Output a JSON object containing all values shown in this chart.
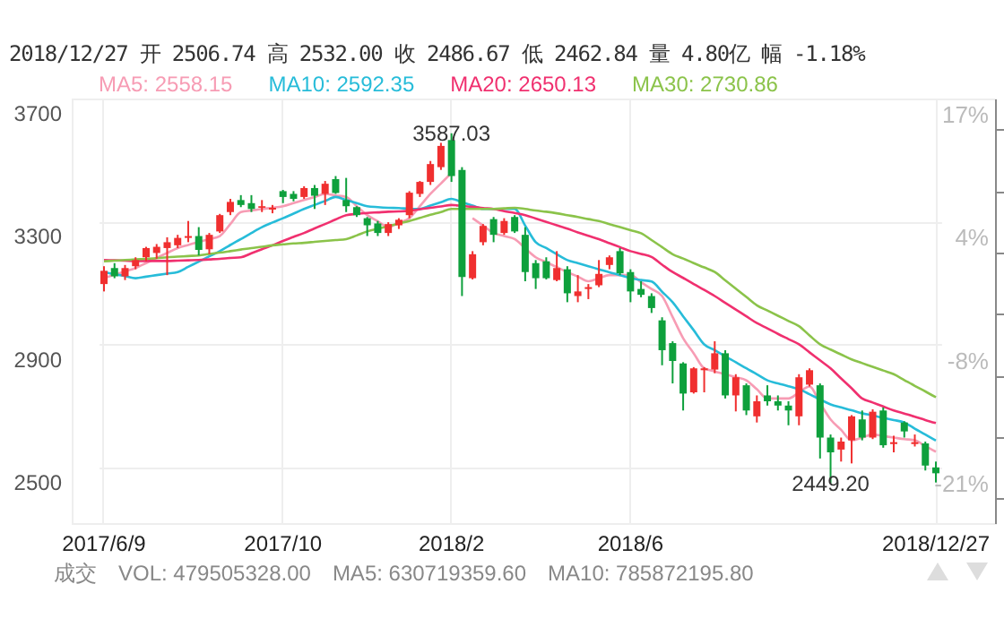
{
  "chart_data": {
    "type": "candlestick",
    "title": "2018/12/27 开 2506.74 高 2532.00 收 2486.67 低 2462.84 量 4.80亿 幅 -1.18%",
    "categories": [
      "2017/6/9",
      null,
      null,
      null,
      null,
      null,
      null,
      null,
      null,
      null,
      null,
      null,
      null,
      null,
      null,
      null,
      null,
      "2017/10",
      null,
      null,
      null,
      null,
      null,
      null,
      null,
      null,
      null,
      null,
      null,
      null,
      null,
      null,
      null,
      "2018/2",
      null,
      null,
      null,
      null,
      null,
      null,
      null,
      null,
      null,
      null,
      null,
      null,
      null,
      null,
      null,
      null,
      "2018/6",
      null,
      null,
      null,
      null,
      null,
      null,
      null,
      null,
      null,
      null,
      null,
      null,
      null,
      null,
      null,
      null,
      null,
      null,
      null,
      null,
      null,
      null,
      null,
      null,
      null,
      null,
      null,
      null,
      "2018/12/27"
    ],
    "ohlc": [
      [
        3097,
        3155,
        3073,
        3140
      ],
      [
        3149,
        3165,
        3116,
        3122
      ],
      [
        3122,
        3159,
        3110,
        3149
      ],
      [
        3155,
        3184,
        3145,
        3175
      ],
      [
        3184,
        3218,
        3171,
        3214
      ],
      [
        3198,
        3227,
        3179,
        3218
      ],
      [
        3214,
        3249,
        3126,
        3233
      ],
      [
        3223,
        3257,
        3214,
        3247
      ],
      [
        3247,
        3302,
        3233,
        3253
      ],
      [
        3253,
        3282,
        3190,
        3208
      ],
      [
        3210,
        3263,
        3194,
        3257
      ],
      [
        3268,
        3325,
        3263,
        3321
      ],
      [
        3331,
        3374,
        3321,
        3364
      ],
      [
        3370,
        3386,
        3347,
        3354
      ],
      [
        3360,
        3386,
        3331,
        3341
      ],
      [
        3345,
        3370,
        3331,
        3350
      ],
      [
        3339,
        3354,
        3327,
        3345
      ],
      [
        3399,
        3403,
        3360,
        3380
      ],
      [
        3390,
        3399,
        3366,
        3374
      ],
      [
        3380,
        3415,
        3374,
        3409
      ],
      [
        3409,
        3419,
        3341,
        3384
      ],
      [
        3390,
        3432,
        3354,
        3423
      ],
      [
        3438,
        3448,
        3390,
        3393
      ],
      [
        3370,
        3442,
        3331,
        3350
      ],
      [
        3347,
        3350,
        3315,
        3321
      ],
      [
        3311,
        3315,
        3253,
        3288
      ],
      [
        3294,
        3302,
        3253,
        3263
      ],
      [
        3263,
        3298,
        3253,
        3292
      ],
      [
        3288,
        3311,
        3276,
        3306
      ],
      [
        3321,
        3399,
        3311,
        3394
      ],
      [
        3390,
        3432,
        3380,
        3429
      ],
      [
        3429,
        3497,
        3419,
        3487
      ],
      [
        3477,
        3556,
        3468,
        3546
      ],
      [
        3565,
        3587.03,
        3429,
        3448
      ],
      [
        3468,
        3477,
        3058,
        3120
      ],
      [
        3116,
        3204,
        3112,
        3194
      ],
      [
        3233,
        3292,
        3223,
        3286
      ],
      [
        3308,
        3315,
        3233,
        3257
      ],
      [
        3263,
        3311,
        3257,
        3302
      ],
      [
        3315,
        3321,
        3263,
        3268
      ],
      [
        3257,
        3282,
        3106,
        3136
      ],
      [
        3165,
        3175,
        3081,
        3116
      ],
      [
        3171,
        3184,
        3112,
        3116
      ],
      [
        3110,
        3204,
        3106,
        3149
      ],
      [
        3145,
        3155,
        3038,
        3067
      ],
      [
        3058,
        3126,
        3038,
        3073
      ],
      [
        3081,
        3097,
        3048,
        3087
      ],
      [
        3093,
        3175,
        3087,
        3130
      ],
      [
        3159,
        3190,
        3145,
        3184
      ],
      [
        3204,
        3214,
        3126,
        3132
      ],
      [
        3136,
        3145,
        3038,
        3073
      ],
      [
        3081,
        3106,
        3054,
        3062
      ],
      [
        3058,
        3067,
        3003,
        3019
      ],
      [
        2979,
        2989,
        2833,
        2882
      ],
      [
        2905,
        2911,
        2774,
        2847
      ],
      [
        2839,
        2843,
        2686,
        2741
      ],
      [
        2745,
        2827,
        2741,
        2823
      ],
      [
        2817,
        2827,
        2745,
        2823
      ],
      [
        2819,
        2911,
        2807,
        2872
      ],
      [
        2872,
        2882,
        2725,
        2735
      ],
      [
        2735,
        2804,
        2683,
        2794
      ],
      [
        2768,
        2774,
        2671,
        2686
      ],
      [
        2667,
        2735,
        2647,
        2716
      ],
      [
        2735,
        2768,
        2702,
        2716
      ],
      [
        2716,
        2735,
        2686,
        2702
      ],
      [
        2702,
        2716,
        2638,
        2686
      ],
      [
        2667,
        2804,
        2638,
        2794
      ],
      [
        2770,
        2823,
        2764,
        2817
      ],
      [
        2768,
        2774,
        2530,
        2598
      ],
      [
        2598,
        2608,
        2449.2,
        2550
      ],
      [
        2559,
        2598,
        2520,
        2585
      ],
      [
        2589,
        2671,
        2514,
        2667
      ],
      [
        2657,
        2686,
        2589,
        2598
      ],
      [
        2598,
        2690,
        2593,
        2682
      ],
      [
        2686,
        2696,
        2565,
        2573
      ],
      [
        2577,
        2604,
        2550,
        2583
      ],
      [
        2647,
        2651,
        2598,
        2618
      ],
      [
        2577,
        2608,
        2569,
        2583
      ],
      [
        2579,
        2585,
        2491,
        2507
      ],
      [
        2501,
        2520,
        2452,
        2482
      ]
    ],
    "colors": [
      "#f02f2f",
      "#0ea03c",
      "#f02f2f",
      "#f02f2f",
      "#f02f2f",
      "#f02f2f",
      "#f02f2f",
      "#f02f2f",
      "#f02f2f",
      "#0ea03c",
      "#f02f2f",
      "#f02f2f",
      "#f02f2f",
      "#0ea03c",
      "#0ea03c",
      "#f02f2f",
      "#f02f2f",
      "#0ea03c",
      "#0ea03c",
      "#f02f2f",
      "#0ea03c",
      "#f02f2f",
      "#0ea03c",
      "#0ea03c",
      "#0ea03c",
      "#0ea03c",
      "#0ea03c",
      "#f02f2f",
      "#f02f2f",
      "#f02f2f",
      "#f02f2f",
      "#f02f2f",
      "#f02f2f",
      "#0ea03c",
      "#0ea03c",
      "#f02f2f",
      "#f02f2f",
      "#0ea03c",
      "#f02f2f",
      "#0ea03c",
      "#0ea03c",
      "#0ea03c",
      "#0ea03c",
      "#f02f2f",
      "#0ea03c",
      "#f02f2f",
      "#f02f2f",
      "#f02f2f",
      "#f02f2f",
      "#0ea03c",
      "#0ea03c",
      "#0ea03c",
      "#0ea03c",
      "#0ea03c",
      "#0ea03c",
      "#0ea03c",
      "#f02f2f",
      "#f02f2f",
      "#f02f2f",
      "#0ea03c",
      "#f02f2f",
      "#0ea03c",
      "#f02f2f",
      "#0ea03c",
      "#0ea03c",
      "#0ea03c",
      "#f02f2f",
      "#f02f2f",
      "#0ea03c",
      "#0ea03c",
      "#f02f2f",
      "#f02f2f",
      "#0ea03c",
      "#f02f2f",
      "#0ea03c",
      "#f02f2f",
      "#0ea03c",
      "#f02f2f",
      "#0ea03c",
      "#0ea03c"
    ],
    "series": [
      {
        "name": "MA5: 2558.15",
        "type": "line",
        "color": "#f79cb4",
        "values": [
          3116,
          3127,
          3138,
          3149,
          3165,
          3182,
          3198,
          3214,
          3224,
          3234,
          3243,
          3253,
          3292,
          3331,
          3336,
          3341,
          3345,
          3350,
          3360,
          3370,
          3380,
          3390,
          3385,
          3380,
          3350,
          3321,
          3301,
          3282,
          3296,
          3311,
          3350,
          3390,
          3424,
          3458,
          null,
          3311,
          3287,
          3263,
          3253,
          3243,
          3213,
          3184,
          3168,
          3152,
          3136,
          3121,
          3106,
          3116,
          3126,
          3126,
          3126,
          3103,
          3081,
          3058,
          2990,
          2921,
          2872,
          2823,
          2813,
          2804,
          2794,
          2784,
          2755,
          2725,
          2725,
          2725,
          2745,
          2764,
          2710,
          2657,
          2623,
          2589,
          2598,
          2608,
          2603,
          2598,
          2593,
          2589,
          2570,
          2552
        ]
      },
      {
        "name": "MA10: 2592.35",
        "type": "line",
        "color": "#27bcd9",
        "values": [
          3136,
          3129,
          3123,
          3116,
          3121,
          3126,
          3131,
          3136,
          3153,
          3170,
          3187,
          3204,
          3224,
          3243,
          3263,
          3282,
          3297,
          3311,
          3326,
          3341,
          3354,
          3367,
          3380,
          3370,
          3360,
          3350,
          3347,
          3345,
          3344,
          3342,
          3341,
          3352,
          3363,
          3374,
          3363,
          3352,
          3341,
          3341,
          3341,
          3341,
          3287,
          3233,
          3214,
          3194,
          3175,
          3165,
          3155,
          3145,
          3135,
          3126,
          3116,
          3110,
          3105,
          3072,
          3038,
          2992,
          2947,
          2901,
          2882,
          2862,
          2843,
          2823,
          2804,
          2784,
          2774,
          2765,
          2755,
          2739,
          2722,
          2706,
          2696,
          2687,
          2677,
          2670,
          2662,
          2655,
          2647,
          2627,
          2608,
          2588
        ]
      },
      {
        "name": "MA20: 2650.13",
        "type": "line",
        "color": "#f0306f",
        "values": [
          3175,
          3174,
          3173,
          3172,
          3172,
          3172,
          3172,
          3173,
          3174,
          3175,
          3177,
          3179,
          3182,
          3184,
          3197,
          3210,
          3223,
          3237,
          3250,
          3263,
          3278,
          3292,
          3307,
          3321,
          3325,
          3328,
          3330,
          3332,
          3333,
          3335,
          3340,
          3345,
          3349,
          3354,
          3351,
          3348,
          3344,
          3341,
          3334,
          3328,
          3321,
          3310,
          3299,
          3288,
          3277,
          3265,
          3254,
          3243,
          3230,
          3217,
          3204,
          3195,
          3185,
          3160,
          3136,
          3117,
          3097,
          3078,
          3058,
          3036,
          3014,
          2992,
          2970,
          2953,
          2935,
          2918,
          2901,
          2875,
          2849,
          2823,
          2790,
          2758,
          2725,
          2712,
          2699,
          2686,
          2676,
          2666,
          2655,
          2645
        ]
      },
      {
        "name": "MA30: 2730.86",
        "type": "line",
        "color": "#8bc34a",
        "values": [
          3171,
          3173,
          3175,
          3177,
          3179,
          3181,
          3184,
          3186,
          3188,
          3190,
          3195,
          3199,
          3204,
          3209,
          3214,
          3218,
          3223,
          3226,
          3229,
          3231,
          3234,
          3237,
          3240,
          3243,
          3255,
          3268,
          3277,
          3285,
          3294,
          3302,
          3312,
          3322,
          3331,
          3341,
          3341,
          3341,
          3341,
          3341,
          3343,
          3345,
          3341,
          3336,
          3332,
          3327,
          3321,
          3315,
          3308,
          3302,
          3292,
          3282,
          3272,
          3262,
          3240,
          3217,
          3194,
          3180,
          3165,
          3151,
          3136,
          3109,
          3082,
          3055,
          3028,
          3011,
          2994,
          2977,
          2960,
          2930,
          2901,
          2884,
          2868,
          2852,
          2840,
          2828,
          2816,
          2804,
          2785,
          2766,
          2748,
          2729
        ]
      }
    ],
    "ylim": [
      2320,
      3700
    ],
    "yticks": [
      2500,
      2900,
      3300,
      3700
    ],
    "y2lim": [
      -26.63,
      17.01
    ],
    "y2ticks": [
      {
        "value": 17.01,
        "label": "17%"
      },
      {
        "value": 4.36,
        "label": "4%"
      },
      {
        "value": -8.29,
        "label": "-8%"
      },
      {
        "value": -20.94,
        "label": "-21%"
      }
    ],
    "grid": true,
    "annotations": [
      {
        "text": "3587.03",
        "x": "2018/2",
        "y": 3587.03
      },
      {
        "text": "2449.20",
        "y": 2449.2
      },
      "成交",
      "VOL: 479505328.00",
      "MA5: 630719359.60",
      "MA10: 785872195.80"
    ]
  }
}
